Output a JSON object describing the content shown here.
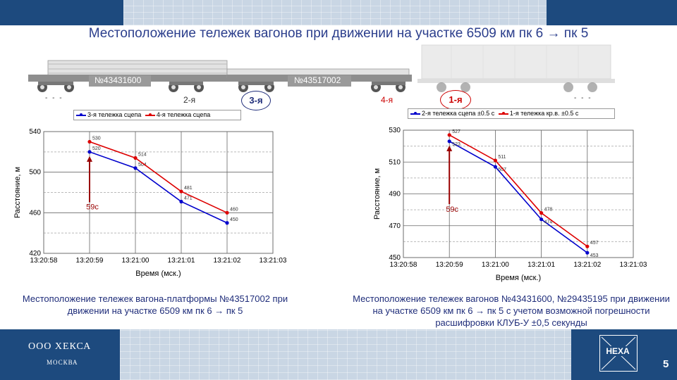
{
  "slide": {
    "title": "Местоположение тележек вагонов при движении на участке 6509 км пк 6 → пк 5",
    "page_number": "5",
    "company_name": "ООО ХЕКСА",
    "company_city": "МОСКВА",
    "logo_text": "HEXA"
  },
  "train": {
    "car1_number": "№43431600",
    "car2_number": "№43517002",
    "bogie_2": "2-я",
    "bogie_3": "3-я",
    "bogie_4": "4-я",
    "bogie_1": "1-я",
    "dashes": "- - -"
  },
  "captions": {
    "left": "Местоположение тележек вагона-платформы №43517002 при движении на участке 6509 км пк 6 → пк 5",
    "right": "Местоположение тележек вагонов №43431600, №29435195 при движении на участке 6509 км пк 6 → пк 5 с учетом возможной погрешности расшифровки КЛУБ-У ±0,5 секунды"
  },
  "colors": {
    "blue": "#0000cc",
    "red": "#dd0000",
    "dark_red": "#990000",
    "brand": "#1d4a7e"
  },
  "chart_data": [
    {
      "type": "line",
      "xlabel": "Время (мск.)",
      "ylabel": "Расстояние, м",
      "x_ticks": [
        "13:20:58",
        "13:20:59",
        "13:21:00",
        "13:21:01",
        "13:21:02",
        "13:21:03"
      ],
      "ylim": [
        420,
        540
      ],
      "y_ticks": [
        420,
        460,
        500,
        540
      ],
      "grid": true,
      "legend_position": "top",
      "annotation": "59с",
      "series": [
        {
          "name": "3-я тележка сцепа",
          "color": "#0000cc",
          "x": [
            1,
            2,
            3,
            4
          ],
          "values": [
            520,
            504,
            471,
            450
          ]
        },
        {
          "name": "4-я тележка сцепа",
          "color": "#dd0000",
          "x": [
            1,
            2,
            3,
            4
          ],
          "values": [
            530,
            514,
            481,
            460
          ]
        }
      ]
    },
    {
      "type": "line",
      "xlabel": "Время (мск.)",
      "ylabel": "Расстояние, м",
      "x_ticks": [
        "13:20:58",
        "13:20:59",
        "13:21:00",
        "13:21:01",
        "13:21:02",
        "13:21:03"
      ],
      "ylim": [
        450,
        530
      ],
      "y_ticks": [
        450,
        470,
        490,
        510,
        530
      ],
      "grid": true,
      "legend_position": "top",
      "annotation": "59с",
      "series": [
        {
          "name": "2-я тележка сцепа ±0.5 с",
          "color": "#0000cc",
          "x": [
            1,
            2,
            3,
            4
          ],
          "values": [
            523,
            507,
            474,
            453
          ]
        },
        {
          "name": "1-я тележка кр.в. ±0.5 с",
          "color": "#dd0000",
          "x": [
            1,
            2,
            3,
            4
          ],
          "values": [
            527,
            511,
            478,
            457
          ]
        }
      ]
    }
  ]
}
